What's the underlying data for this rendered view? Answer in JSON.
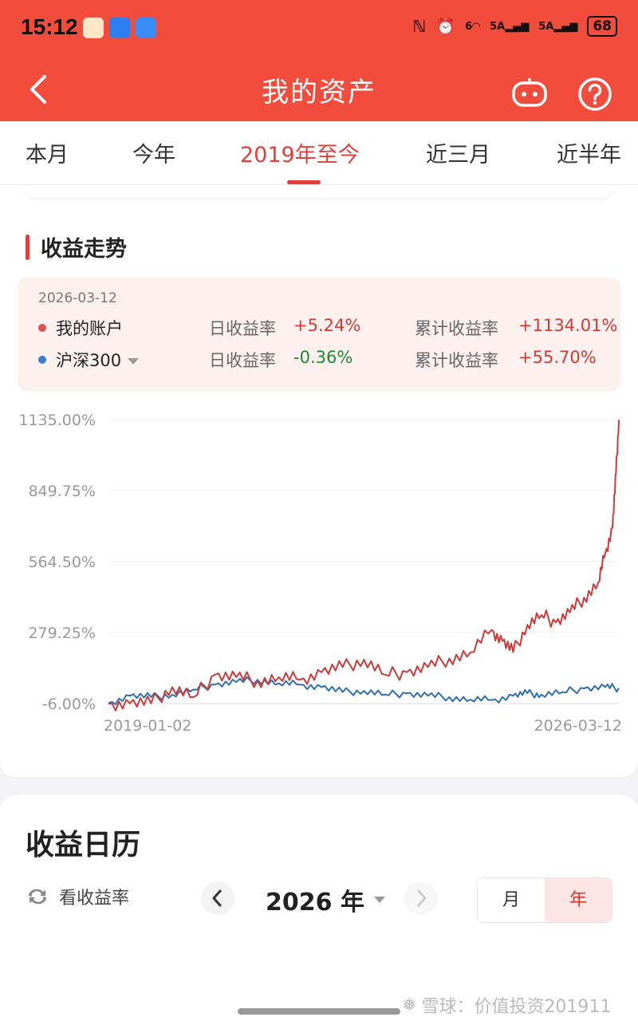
{
  "status": {
    "time": "15:12",
    "sig1": "5A",
    "sig2": "5A",
    "wifi_tag": "6",
    "battery": "68"
  },
  "nav": {
    "title": "我的资产"
  },
  "tabs": [
    "本月",
    "今年",
    "2019年至今",
    "近三月",
    "近半年"
  ],
  "active_tab": 2,
  "section": {
    "title": "收益走势"
  },
  "info": {
    "date": "2026-03-12",
    "rows": [
      {
        "name": "我的账户",
        "daily_label": "日收益率",
        "daily": "+5.24%",
        "cum_label": "累计收益率",
        "cum": "+1134.01%",
        "color": "#d9534f"
      },
      {
        "name": "沪深300",
        "daily_label": "日收益率",
        "daily": "-0.36%",
        "cum_label": "累计收益率",
        "cum": "+55.70%",
        "color": "#3a7dc9"
      }
    ]
  },
  "chart_data": {
    "type": "line",
    "y_ticks": [
      "1135.00%",
      "849.75%",
      "564.50%",
      "279.25%",
      "-6.00%"
    ],
    "ylim": [
      -6.0,
      1135.0
    ],
    "x_labels": [
      "2019-01-02",
      "2026-03-12"
    ],
    "grid": true,
    "series": [
      {
        "name": "我的账户",
        "color": "#cc3b3b",
        "x": [
          2019.0,
          2019.3,
          2019.6,
          2019.9,
          2020.2,
          2020.5,
          2020.8,
          2021.1,
          2021.4,
          2021.7,
          2022.0,
          2022.3,
          2022.6,
          2022.9,
          2023.2,
          2023.5,
          2023.8,
          2024.1,
          2024.4,
          2024.55,
          2024.7,
          2024.9,
          2025.1,
          2025.3,
          2025.5,
          2025.7,
          2025.9,
          2026.0,
          2026.1,
          2026.15,
          2026.19
        ],
        "y": [
          -6,
          -5,
          -5,
          60,
          20,
          110,
          100,
          85,
          100,
          90,
          120,
          140,
          170,
          110,
          120,
          140,
          175,
          200,
          290,
          245,
          200,
          310,
          350,
          320,
          360,
          420,
          480,
          600,
          700,
          920,
          1134
        ]
      },
      {
        "name": "沪深300",
        "color": "#2f6fb0",
        "x": [
          2019.0,
          2019.3,
          2019.6,
          2019.9,
          2020.2,
          2020.5,
          2020.8,
          2021.1,
          2021.4,
          2021.7,
          2022.0,
          2022.3,
          2022.6,
          2022.9,
          2023.2,
          2023.5,
          2023.8,
          2024.1,
          2024.4,
          2024.7,
          2024.9,
          2025.1,
          2025.4,
          2025.7,
          2026.0,
          2026.19
        ],
        "y": [
          -4,
          25,
          20,
          30,
          50,
          70,
          80,
          90,
          75,
          70,
          60,
          40,
          45,
          30,
          35,
          25,
          20,
          10,
          8,
          25,
          35,
          30,
          40,
          55,
          60,
          56
        ]
      }
    ]
  },
  "calendar": {
    "title": "收益日历",
    "toggle_label": "看收益率",
    "year": "2026 年",
    "seg": [
      "月",
      "年"
    ]
  },
  "watermark": "雪球：价值投资201911"
}
